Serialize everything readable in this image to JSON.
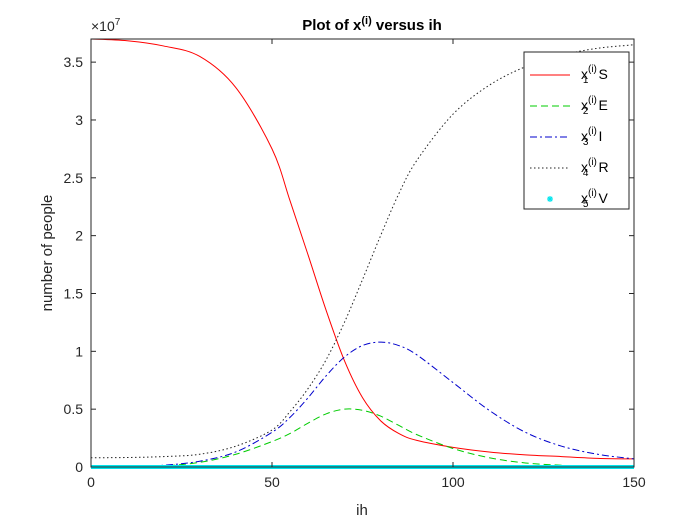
{
  "chart_data": {
    "type": "line",
    "title": {
      "base": "Plot of x",
      "superscript": "(i)",
      "suffix": " versus ih"
    },
    "xlabel": "ih",
    "ylabel": "number of people",
    "xlim": [
      0,
      150
    ],
    "ylim": [
      0,
      37000000
    ],
    "y_exponent_label": {
      "prefix": "×10",
      "exponent": "7"
    },
    "x_ticks": [
      0,
      50,
      100,
      150
    ],
    "x_tick_labels": [
      "0",
      "50",
      "100",
      "150"
    ],
    "y_ticks": [
      0,
      5000000,
      10000000,
      15000000,
      20000000,
      25000000,
      30000000,
      35000000
    ],
    "y_tick_labels": [
      "0",
      "0.5",
      "1",
      "1.5",
      "2",
      "2.5",
      "3",
      "3.5"
    ],
    "grid": false,
    "legend_position": "top-right",
    "x": [
      0,
      10,
      20,
      30,
      40,
      50,
      55,
      60,
      65,
      70,
      75,
      80,
      85,
      90,
      100,
      110,
      120,
      130,
      140,
      150
    ],
    "series": [
      {
        "name": "S",
        "legend_base": "x",
        "legend_sub": "1",
        "legend_sup": "(i)",
        "color": "#ff0000",
        "dash": "",
        "marker": "",
        "values": [
          37000000,
          36850000,
          36400000,
          35500000,
          32800000,
          27500000,
          23000000,
          18300000,
          13500000,
          9200000,
          6000000,
          4000000,
          2900000,
          2300000,
          1700000,
          1300000,
          1050000,
          900000,
          750000,
          700000
        ]
      },
      {
        "name": "E",
        "legend_base": "x",
        "legend_sub": "2",
        "legend_sup": "(i)",
        "color": "#00cc00",
        "dash": "7,4",
        "marker": "",
        "values": [
          0,
          20000,
          100000,
          400000,
          1100000,
          2200000,
          2900000,
          3800000,
          4600000,
          5000000,
          4900000,
          4400000,
          3600000,
          2800000,
          1600000,
          800000,
          350000,
          150000,
          50000,
          20000
        ]
      },
      {
        "name": "I",
        "legend_base": "x",
        "legend_sub": "3",
        "legend_sup": "(i)",
        "color": "#0000cc",
        "dash": "7,3,2,3",
        "marker": "",
        "values": [
          0,
          20000,
          150000,
          500000,
          1300000,
          3000000,
          4300000,
          6000000,
          7900000,
          9500000,
          10500000,
          10800000,
          10500000,
          9700000,
          7300000,
          4900000,
          3000000,
          1800000,
          1100000,
          700000
        ]
      },
      {
        "name": "R",
        "legend_base": "x",
        "legend_sub": "4",
        "legend_sup": "(i)",
        "color": "#222222",
        "dash": "1.5,2.5",
        "marker": "",
        "values": [
          800000,
          820000,
          900000,
          1100000,
          1800000,
          3200000,
          4800000,
          6800000,
          9300000,
          12500000,
          16200000,
          20000000,
          23600000,
          26500000,
          30500000,
          33000000,
          34600000,
          35600000,
          36200000,
          36500000
        ]
      },
      {
        "name": "V",
        "legend_base": "x",
        "legend_sub": "5",
        "legend_sup": "(i)",
        "color": "#00e5ee",
        "dash": "",
        "marker": "*",
        "values": [
          0,
          0,
          0,
          0,
          0,
          0,
          0,
          0,
          0,
          0,
          0,
          0,
          0,
          0,
          0,
          0,
          0,
          0,
          0,
          0
        ]
      }
    ]
  }
}
